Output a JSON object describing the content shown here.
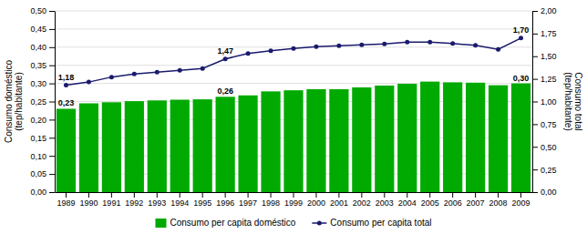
{
  "chart_data": {
    "type": "bar",
    "categories": [
      "1989",
      "1990",
      "1991",
      "1992",
      "1993",
      "1994",
      "1995",
      "1996",
      "1997",
      "1998",
      "1999",
      "2000",
      "2001",
      "2002",
      "2003",
      "2004",
      "2005",
      "2006",
      "2007",
      "2008",
      "2009"
    ],
    "series": [
      {
        "name": "Consumo per capita doméstico",
        "type": "bar",
        "color": "#00aa00",
        "values": [
          0.23,
          0.245,
          0.248,
          0.251,
          0.253,
          0.255,
          0.256,
          0.263,
          0.267,
          0.278,
          0.281,
          0.284,
          0.284,
          0.289,
          0.294,
          0.299,
          0.305,
          0.303,
          0.302,
          0.295,
          0.3
        ],
        "value_labels": [
          "0,23",
          null,
          null,
          null,
          null,
          null,
          null,
          "0,26",
          null,
          null,
          null,
          null,
          null,
          null,
          null,
          null,
          null,
          null,
          null,
          null,
          "0,30"
        ]
      },
      {
        "name": "Consumo per capita total",
        "type": "line",
        "axis": "y2",
        "color": "#1a1a6e",
        "marker": "circle",
        "values": [
          1.18,
          1.215,
          1.27,
          1.305,
          1.325,
          1.345,
          1.365,
          1.47,
          1.53,
          1.56,
          1.585,
          1.605,
          1.615,
          1.625,
          1.635,
          1.655,
          1.655,
          1.64,
          1.62,
          1.575,
          1.7
        ],
        "value_labels": [
          "1,18",
          null,
          null,
          null,
          null,
          null,
          null,
          "1,47",
          null,
          null,
          null,
          null,
          null,
          null,
          null,
          null,
          null,
          null,
          null,
          null,
          "1,70"
        ]
      }
    ],
    "ylabel": "Consumo doméstico\n(tep/habitante)",
    "y2label": "Consumo total\n(tep/habitante)",
    "ylim": [
      0.0,
      0.5
    ],
    "yticks": [
      {
        "value": 0.0,
        "label": "0,00"
      },
      {
        "value": 0.05,
        "label": "0,05"
      },
      {
        "value": 0.1,
        "label": "0,10"
      },
      {
        "value": 0.15,
        "label": "0,15"
      },
      {
        "value": 0.2,
        "label": "0,20"
      },
      {
        "value": 0.25,
        "label": "0,25"
      },
      {
        "value": 0.3,
        "label": "0,30"
      },
      {
        "value": 0.35,
        "label": "0,35"
      },
      {
        "value": 0.4,
        "label": "0,40"
      },
      {
        "value": 0.45,
        "label": "0,45"
      },
      {
        "value": 0.5,
        "label": "0,50"
      }
    ],
    "y2lim": [
      0.0,
      2.0
    ],
    "y2ticks": [
      {
        "value": 0.0,
        "label": "0,00"
      },
      {
        "value": 0.25,
        "label": "0,25"
      },
      {
        "value": 0.5,
        "label": "0,50"
      },
      {
        "value": 0.75,
        "label": "0,75"
      },
      {
        "value": 1.0,
        "label": "1,00"
      },
      {
        "value": 1.25,
        "label": "1,25"
      },
      {
        "value": 1.5,
        "label": "1,50"
      },
      {
        "value": 1.75,
        "label": "1,75"
      },
      {
        "value": 2.0,
        "label": "2,00"
      }
    ],
    "grid": true,
    "legend": "bottom"
  }
}
